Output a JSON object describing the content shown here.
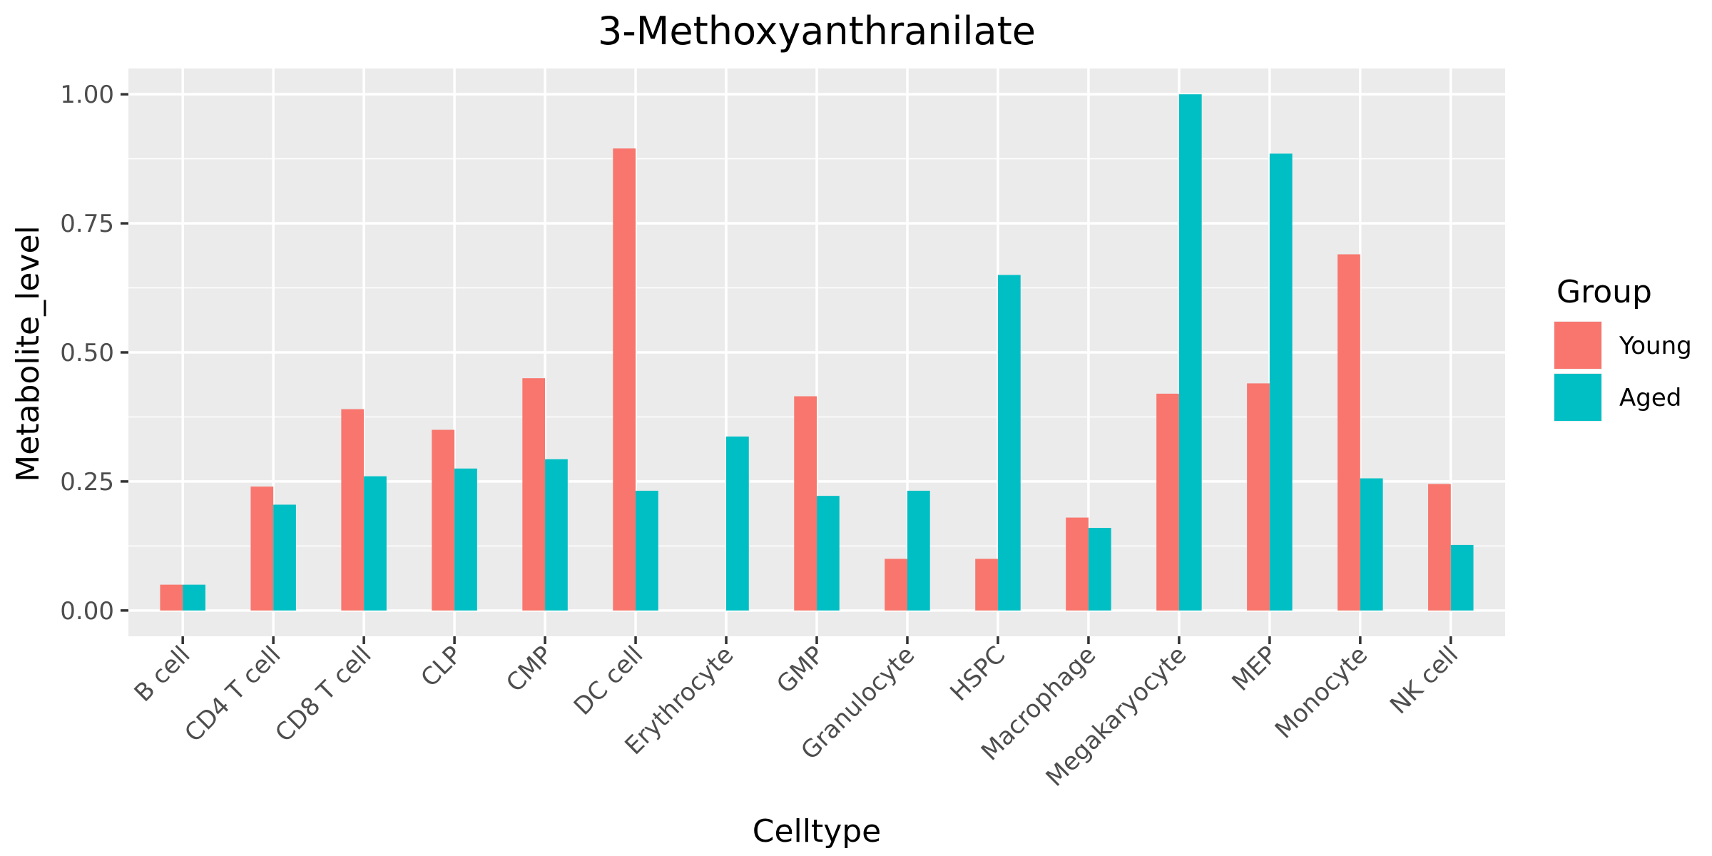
{
  "chart_data": {
    "type": "bar",
    "title": "3-Methoxyanthranilate",
    "xlabel": "Celltype",
    "ylabel": "Metabolite_level",
    "ylim": [
      -0.05,
      1.05
    ],
    "yticks": [
      0,
      0.25,
      0.5,
      0.75,
      1
    ],
    "ytick_labels": [
      "0.00",
      "0.25",
      "0.50",
      "0.75",
      "1.00"
    ],
    "categories": [
      "B cell",
      "CD4 T cell",
      "CD8 T cell",
      "CLP",
      "CMP",
      "DC cell",
      "Erythrocyte",
      "GMP",
      "Granulocyte",
      "HSPC",
      "Macrophage",
      "Megakaryocyte",
      "MEP",
      "Monocyte",
      "NK cell"
    ],
    "series": [
      {
        "name": "Young",
        "color": "#F8766D",
        "values": [
          0.05,
          0.24,
          0.39,
          0.35,
          0.45,
          0.895,
          0,
          0.415,
          0.1,
          0.1,
          0.18,
          0.42,
          0.44,
          0.69,
          0.245
        ]
      },
      {
        "name": "Aged",
        "color": "#00BFC4",
        "values": [
          0.05,
          0.205,
          0.26,
          0.275,
          0.293,
          0.232,
          0.337,
          0.222,
          0.232,
          0.65,
          0.16,
          1.0,
          0.885,
          0.256,
          0.127
        ]
      }
    ],
    "legend": {
      "title": "Group",
      "position": "right"
    },
    "grid": true,
    "panel_background": "#EBEBEB",
    "grid_color": "#FFFFFF"
  }
}
